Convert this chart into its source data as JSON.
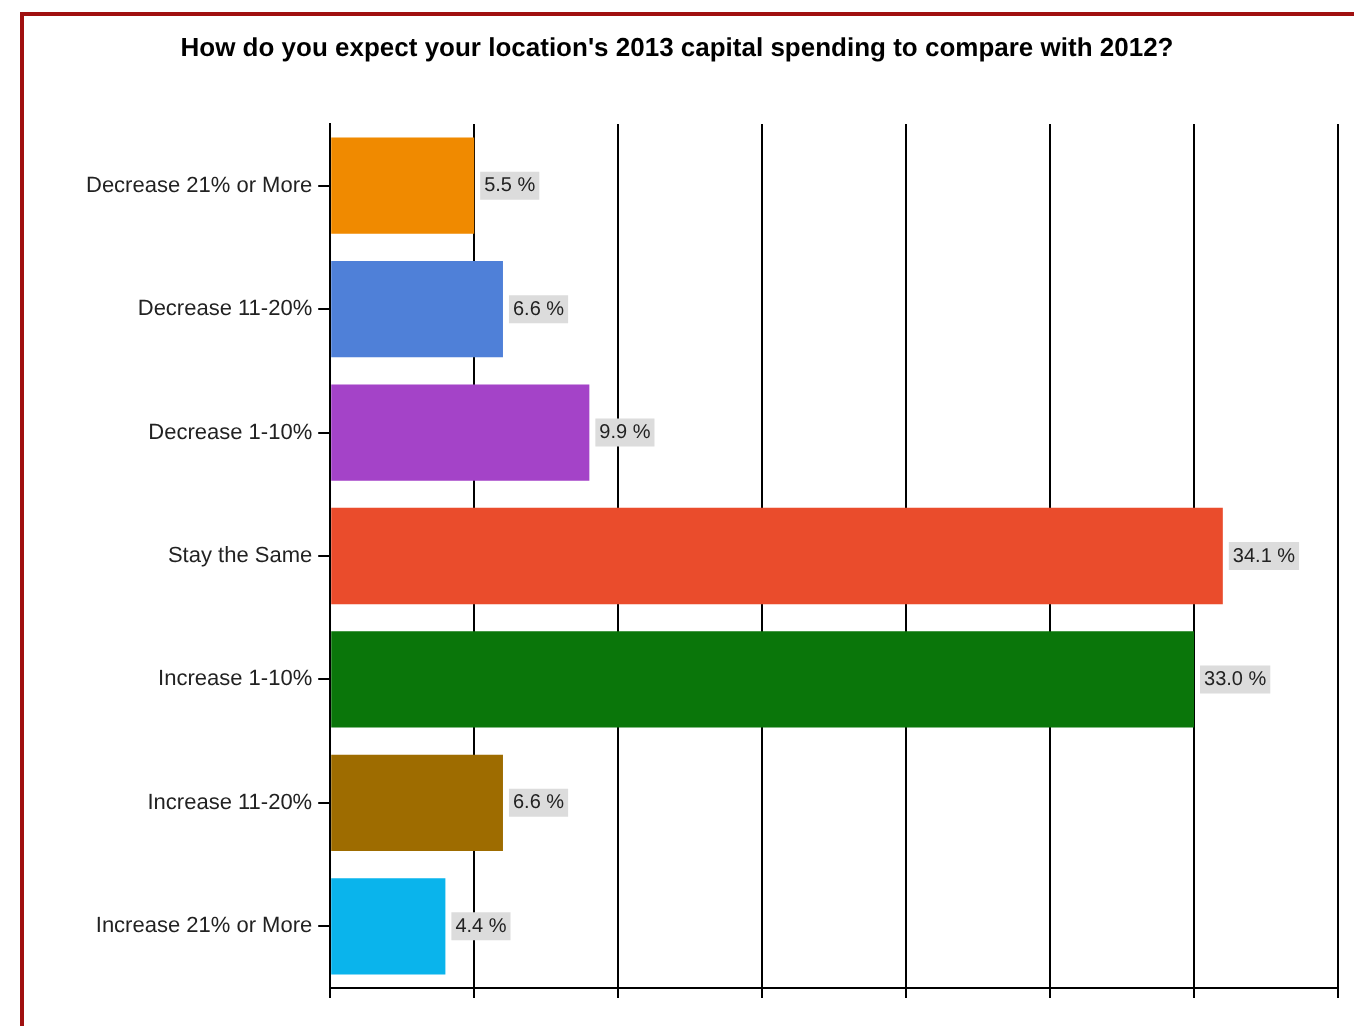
{
  "chart_data": {
    "type": "bar",
    "orientation": "horizontal",
    "title": "How do you expect your location's 2013 capital spending to compare with 2012?",
    "categories": [
      "Decrease 21% or More",
      "Decrease 11-20%",
      "Decrease 1-10%",
      "Stay the Same",
      "Increase 1-10%",
      "Increase 11-20%",
      "Increase 21% or More"
    ],
    "values": [
      5.5,
      6.6,
      9.9,
      34.1,
      33.0,
      6.6,
      4.4
    ],
    "colors": [
      "#f08a00",
      "#4f80d8",
      "#a443c8",
      "#ea4c2c",
      "#0a760a",
      "#9e6c00",
      "#0ab4ec"
    ],
    "value_labels": [
      "5.5 %",
      "6.6 %",
      "9.9 %",
      "34.1 %",
      "33.0 %",
      "6.6 %",
      "4.4 %"
    ],
    "xlim": [
      0,
      38.5
    ],
    "xticks": [
      {
        "value": 0,
        "label": null
      },
      {
        "value": 5.5,
        "label": null
      },
      {
        "value": 11,
        "label": null
      },
      {
        "value": 16.5,
        "label": null
      },
      {
        "value": 22,
        "label": null
      },
      {
        "value": 27.5,
        "label": null
      },
      {
        "value": 33,
        "label": null
      },
      {
        "value": 38.5,
        "label": null
      }
    ],
    "grid": "x",
    "tick_labels": "y",
    "legend": false
  }
}
